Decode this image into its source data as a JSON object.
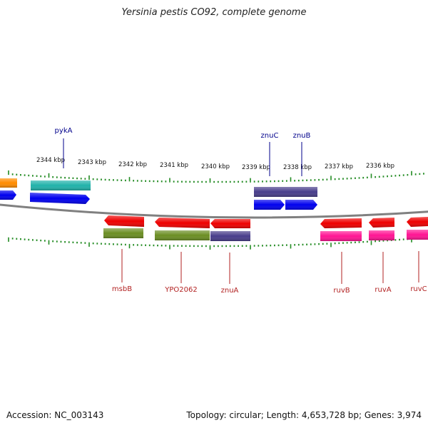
{
  "title": "Yersinia pestis CO92, complete genome",
  "accession": "Accession: NC_003143",
  "topology": "Topology: circular; Length: 4,653,728 bp; Genes: 3,974",
  "colors": {
    "backbone": "#808080",
    "tick": "#228B22",
    "top_label": "#00008B",
    "bottom_label": "#B22222"
  },
  "scale_labels": [
    {
      "text": "2344 kbp",
      "kbp": 2344
    },
    {
      "text": "2343 kbp",
      "kbp": 2343
    },
    {
      "text": "2342 kbp",
      "kbp": 2342
    },
    {
      "text": "2341 kbp",
      "kbp": 2341
    },
    {
      "text": "2340 kbp",
      "kbp": 2340
    },
    {
      "text": "2339 kbp",
      "kbp": 2339
    },
    {
      "text": "2338 kbp",
      "kbp": 2338
    },
    {
      "text": "2337 kbp",
      "kbp": 2337
    },
    {
      "text": "2336 kbp",
      "kbp": 2336
    }
  ],
  "top_genes": [
    {
      "name": "pykA"
    },
    {
      "name": "znuC"
    },
    {
      "name": "znuB"
    }
  ],
  "bottom_genes": [
    {
      "name": "msbB"
    },
    {
      "name": "YPO2062"
    },
    {
      "name": "znuA"
    },
    {
      "name": "ruvB"
    },
    {
      "name": "ruvA"
    },
    {
      "name": "ruvC"
    }
  ]
}
